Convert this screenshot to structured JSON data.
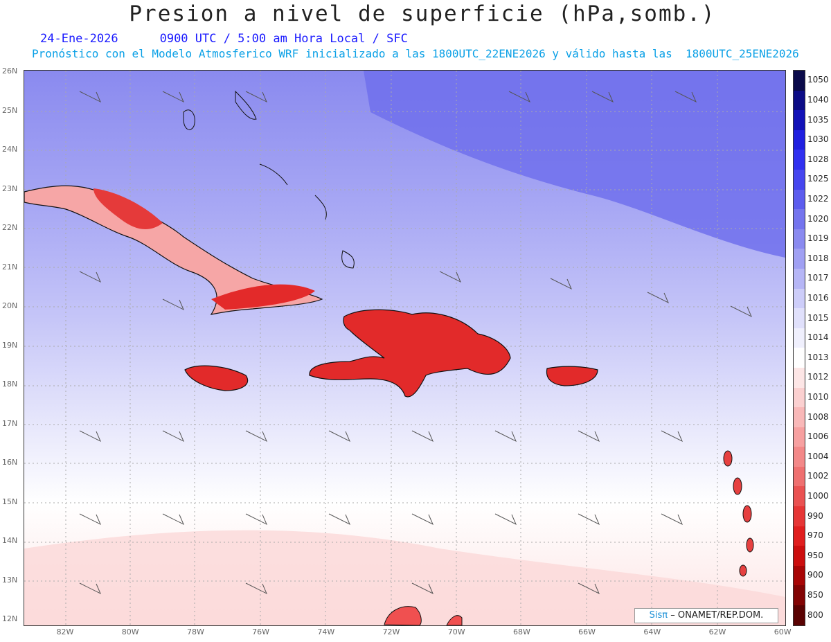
{
  "title": "Presion a nivel de superficie (hPa,somb.)",
  "date": "24-Ene-2026",
  "time_label": "0900 UTC / 5:00 am Hora Local / SFC",
  "forecast_note": "Pronóstico con el Modelo Atmosferico WRF inicializado a las 1800UTC_22ENE2026 y válido hasta las  1800UTC_25ENE2026",
  "credit": {
    "brand": "Sisπ",
    "text": "– ONAMET/REP.DOM."
  },
  "map": {
    "lat_labels": [
      "26N",
      "25N",
      "24N",
      "23N",
      "22N",
      "21N",
      "20N",
      "19N",
      "18N",
      "17N",
      "16N",
      "15N",
      "14N",
      "13N",
      "12N"
    ],
    "lon_labels": [
      "82W",
      "80W",
      "78W",
      "76W",
      "74W",
      "72W",
      "70W",
      "68W",
      "66W",
      "64W",
      "62W",
      "60W"
    ],
    "land_islands": [
      "Cuba",
      "Jamaica",
      "Hispaniola",
      "Puerto Rico",
      "Bahamas",
      "Lesser Antilles"
    ]
  },
  "colorbar": {
    "levels": [
      "1050",
      "1040",
      "1035",
      "1030",
      "1028",
      "1025",
      "1022",
      "1020",
      "1019",
      "1018",
      "1017",
      "1016",
      "1015",
      "1014",
      "1013",
      "1012",
      "1010",
      "1008",
      "1006",
      "1004",
      "1002",
      "1000",
      "990",
      "970",
      "950",
      "900",
      "850",
      "800"
    ],
    "colors": [
      "#0a0a4a",
      "#0c0c86",
      "#1212b8",
      "#1f1fe0",
      "#3030f0",
      "#4646ef",
      "#5c5cee",
      "#7474ee",
      "#8a8af0",
      "#a0a0f3",
      "#b6b6f6",
      "#cdcdf9",
      "#e0e0fb",
      "#f0f0fd",
      "#ffffff",
      "#fde6e6",
      "#fbd0d0",
      "#f9b8b8",
      "#f7a0a0",
      "#f38888",
      "#ef7070",
      "#ea5252",
      "#e63636",
      "#e01e1e",
      "#cc0e0e",
      "#a80606",
      "#820404",
      "#5a0202"
    ]
  }
}
